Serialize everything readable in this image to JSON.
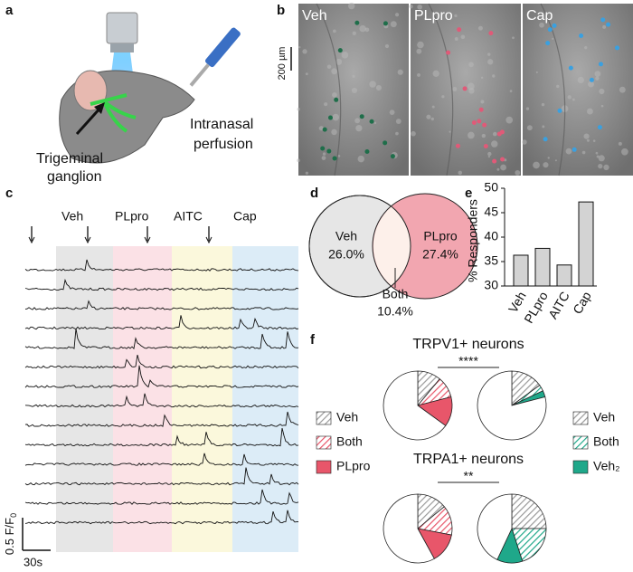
{
  "panel_labels": [
    "a",
    "b",
    "c",
    "d",
    "e",
    "f"
  ],
  "panel_a": {
    "ganglion_label": [
      "Trigeminal",
      "ganglion"
    ],
    "perfusion_label": [
      "Intranasal",
      "perfusion"
    ]
  },
  "panel_b": {
    "image_labels": [
      "Veh",
      "PLpro",
      "Cap"
    ],
    "scale_bar": "200 µm"
  },
  "panel_c": {
    "conditions": [
      "Veh",
      "PLpro",
      "AITC",
      "Cap"
    ],
    "scale_y": "0.5 F/F",
    "scale_y_sub": "0",
    "scale_x": "30s"
  },
  "panel_d": {
    "left": {
      "name": "Veh",
      "percent": "26.0%"
    },
    "right": {
      "name": "PLpro",
      "percent": "27.4%"
    },
    "overlap": {
      "name": "Both",
      "percent": "10.4%"
    }
  },
  "panel_f": {
    "titles": [
      "TRPV1+ neurons",
      "TRPA1+ neurons"
    ],
    "significance": [
      "****",
      "**"
    ]
  },
  "chart_data": [
    {
      "type": "bar",
      "ylabel": "% Responders",
      "categories": [
        "Veh",
        "PLpro",
        "AITC",
        "Cap"
      ],
      "values": [
        36.3,
        37.7,
        34.3,
        47.2
      ],
      "color": "#d3d3d3",
      "ylim": [
        30,
        50
      ],
      "yticks": [
        30,
        35,
        40,
        45,
        50
      ]
    },
    {
      "type": "pie",
      "categories": [
        "Veh",
        "Both",
        "PLpro",
        null
      ],
      "values": [
        11,
        10,
        14,
        65
      ],
      "colors": [
        "#9a9a9a",
        "#e8566a",
        "#e8566a",
        "#ffffff"
      ],
      "hatched": [
        true,
        true,
        false,
        false
      ]
    },
    {
      "type": "pie",
      "categories": [
        "Veh",
        "Both",
        "Veh₂",
        null
      ],
      "values": [
        15,
        3,
        3,
        79
      ],
      "colors": [
        "#9a9a9a",
        "#1fa88a",
        "#1fa88a",
        "#ffffff"
      ],
      "hatched": [
        true,
        true,
        false,
        false
      ]
    },
    {
      "type": "pie",
      "categories": [
        "Veh",
        "Both",
        "PLpro",
        null
      ],
      "values": [
        14,
        14,
        14,
        58
      ],
      "colors": [
        "#9a9a9a",
        "#e8566a",
        "#e8566a",
        "#ffffff"
      ],
      "hatched": [
        true,
        true,
        false,
        false
      ]
    },
    {
      "type": "pie",
      "categories": [
        "Veh",
        "Both",
        "Veh₂",
        null
      ],
      "values": [
        25,
        20,
        12,
        43
      ],
      "colors": [
        "#9a9a9a",
        "#1fa88a",
        "#1fa88a",
        "#ffffff"
      ],
      "hatched": [
        true,
        true,
        false,
        false
      ]
    }
  ]
}
